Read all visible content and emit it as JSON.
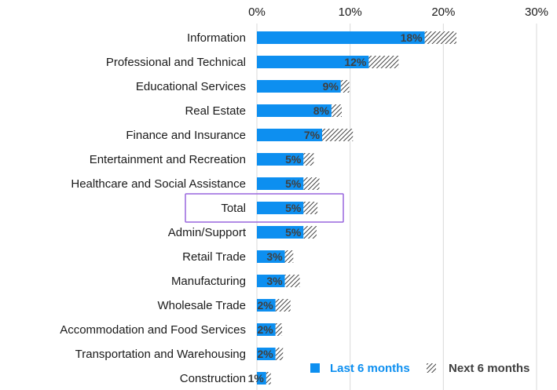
{
  "chart_data": {
    "type": "bar",
    "orientation": "horizontal",
    "stacked": true,
    "categories": [
      "Information",
      "Professional and Technical",
      "Educational Services",
      "Real Estate",
      "Finance and Insurance",
      "Entertainment and Recreation",
      "Healthcare and Social Assistance",
      "Total",
      "Admin/Support",
      "Retail Trade",
      "Manufacturing",
      "Wholesale Trade",
      "Accommodation and Food Services",
      "Transportation and Warehousing",
      "Construction"
    ],
    "series": [
      {
        "name": "Last 6 months",
        "color": "#0d8ff0",
        "pattern": "solid",
        "values": [
          18,
          12,
          9,
          8,
          7,
          5,
          5,
          5,
          5,
          3,
          3,
          2,
          2,
          2,
          1
        ],
        "labels": [
          "18%",
          "12%",
          "9%",
          "8%",
          "7%",
          "5%",
          "5%",
          "5%",
          "5%",
          "3%",
          "3%",
          "2%",
          "2%",
          "2%",
          "1%"
        ]
      },
      {
        "name": "Next 6 months",
        "color": "#404040",
        "pattern": "diagonal-hatch",
        "values": [
          3.4,
          3.2,
          0.9,
          1.1,
          3.3,
          1.1,
          1.7,
          1.5,
          1.4,
          0.9,
          1.6,
          1.6,
          0.7,
          0.8,
          0.5
        ]
      }
    ],
    "highlighted_category": "Total",
    "highlight_color": "#9966dd",
    "xlim": [
      0,
      30
    ],
    "xticks": [
      0,
      10,
      20,
      30
    ],
    "xtick_labels": [
      "0%",
      "10%",
      "20%",
      "30%"
    ],
    "xaxis_position": "top",
    "grid": "vertical",
    "legend_position": "bottom-right",
    "title": "",
    "xlabel": "",
    "ylabel": ""
  },
  "legend": {
    "last_label": "Last 6 months",
    "next_label": "Next 6 months",
    "last_color": "#0d8ff0",
    "next_color": "#404040"
  }
}
